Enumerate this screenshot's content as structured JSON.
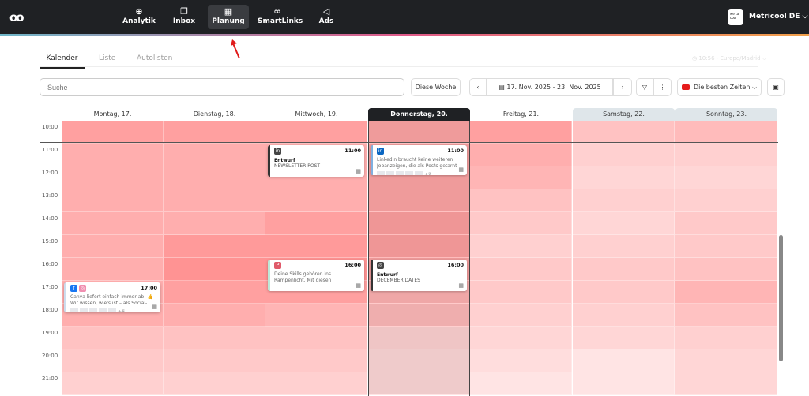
{
  "header": {
    "logo": "oo",
    "nav": [
      {
        "label": "Analytik",
        "icon": "analytics-icon",
        "glyph": "⊕"
      },
      {
        "label": "Inbox",
        "icon": "inbox-icon",
        "glyph": "❐"
      },
      {
        "label": "Planung",
        "icon": "calendar-icon",
        "glyph": "▦",
        "active": true
      },
      {
        "label": "SmartLinks",
        "icon": "link-icon",
        "glyph": "∞"
      },
      {
        "label": "Ads",
        "icon": "megaphone-icon",
        "glyph": "◁"
      }
    ],
    "account": {
      "avatar": "we tal cool",
      "name": "Metricool DE",
      "chevron": "⌵"
    }
  },
  "tabs": [
    {
      "label": "Kalender",
      "active": true
    },
    {
      "label": "Liste"
    },
    {
      "label": "Autolisten"
    }
  ],
  "timezone": "10:56 - Europe/Madrid",
  "toolbar": {
    "search_placeholder": "Suche",
    "this_week": "Diese Woche",
    "prev": "‹",
    "next": "›",
    "range": "17. Nov. 2025 - 23. Nov. 2025",
    "filter": "▽",
    "more": "⋮",
    "best_times": "Die besten Zeiten",
    "best_chevron": "⌵",
    "media": "▣"
  },
  "days": [
    {
      "label": "Montag, 17."
    },
    {
      "label": "Dienstag, 18."
    },
    {
      "label": "Mittwoch, 19."
    },
    {
      "label": "Donnerstag, 20.",
      "today": true
    },
    {
      "label": "Freitag, 21."
    },
    {
      "label": "Samstag, 22.",
      "weekend": true
    },
    {
      "label": "Sonntag, 23.",
      "weekend": true
    }
  ],
  "hours": [
    "10:00",
    "11:00",
    "12:00",
    "13:00",
    "14:00",
    "15:00",
    "16:00",
    "17:00",
    "18:00",
    "19:00",
    "20:00",
    "21:00"
  ],
  "heat_color": "#ff8a8a",
  "heatmap": [
    [
      0.7,
      0.6,
      0.6,
      0.6,
      0.6,
      0.6,
      0.6,
      0.6,
      0.6,
      0.45,
      0.4,
      0.35
    ],
    [
      0.7,
      0.6,
      0.6,
      0.6,
      0.6,
      0.75,
      0.8,
      0.7,
      0.6,
      0.45,
      0.4,
      0.35
    ],
    [
      0.7,
      0.6,
      0.6,
      0.6,
      0.7,
      0.75,
      0.8,
      0.7,
      0.55,
      0.45,
      0.4,
      0.35
    ],
    [
      0.7,
      0.7,
      0.7,
      0.7,
      0.75,
      0.75,
      0.7,
      0.6,
      0.55,
      0.35,
      0.3,
      0.3
    ],
    [
      0.7,
      0.6,
      0.55,
      0.45,
      0.4,
      0.35,
      0.4,
      0.4,
      0.35,
      0.3,
      0.25,
      0.2
    ],
    [
      0.45,
      0.35,
      0.3,
      0.35,
      0.3,
      0.35,
      0.4,
      0.4,
      0.35,
      0.3,
      0.2,
      0.2
    ],
    [
      0.5,
      0.35,
      0.3,
      0.35,
      0.4,
      0.4,
      0.45,
      0.55,
      0.45,
      0.35,
      0.3,
      0.3
    ]
  ],
  "posts": [
    {
      "day": 2,
      "time": "11:00",
      "network": "linkedin",
      "status": "Entwurf",
      "text": "NEWSLETTER POST"
    },
    {
      "day": 3,
      "time": "11:00",
      "network": "linkedin",
      "text": "LinkedIn braucht keine weiteren Jobanzeigen, die als Posts getarnt sind 😬 Es braucht",
      "more": "+2"
    },
    {
      "day": 2,
      "time": "16:00",
      "network": "pinterest",
      "text": "Deine Skills gehören ins Rampenlicht. Mit diesen maßgeschneiderten Vorlagen (Portfolio"
    },
    {
      "day": 3,
      "time": "16:00",
      "network": "instagram",
      "status": "Entwurf",
      "text": "DECEMBER DATES"
    },
    {
      "day": 0,
      "time": "17:00",
      "network": "facebook+instagram",
      "text": "Canva liefert einfach immer ab! 👍 Wir wissen, wie's ist – als Social-Media-Manager",
      "more": "+5"
    }
  ]
}
